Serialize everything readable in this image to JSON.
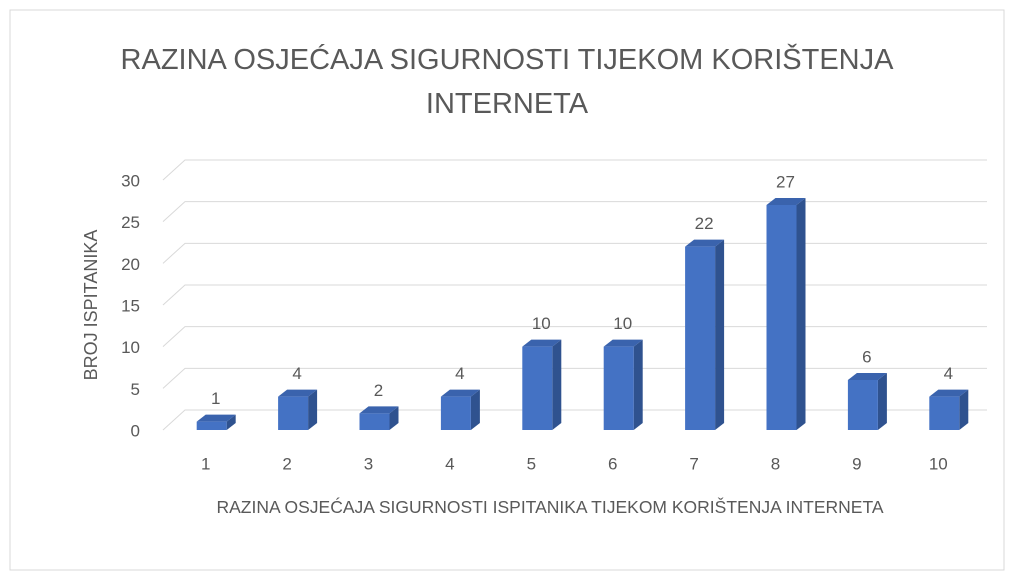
{
  "chart_data": {
    "type": "bar3d",
    "title": "RAZINA OSJEĆAJA SIGURNOSTI TIJEKOM KORIŠTENJA INTERNETA",
    "x_label": "RAZINA OSJEĆAJA SIGURNOSTI ISPITANIKA TIJEKOM KORIŠTENJA INTERNETA",
    "y_label": "BROJ ISPITANIKA",
    "categories": [
      "1",
      "2",
      "3",
      "4",
      "5",
      "6",
      "7",
      "8",
      "9",
      "10"
    ],
    "values": [
      1,
      4,
      2,
      4,
      10,
      10,
      22,
      27,
      6,
      4
    ],
    "color": "#4472c4",
    "ylim": [
      0,
      30
    ],
    "yticks": [
      0,
      5,
      10,
      15,
      20,
      25,
      30
    ],
    "grid": true
  }
}
